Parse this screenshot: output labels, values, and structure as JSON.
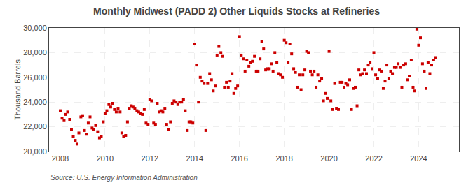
{
  "chart_data": {
    "type": "scatter",
    "title": "Monthly Midwest (PADD 2) Other Liquids Stocks at Refineries",
    "ylabel": "Thousand Barrels",
    "annotations": [
      "Source: U.S. Energy Information Administration"
    ],
    "color": "#cc0000",
    "marker": "square",
    "grid": true,
    "xlim": [
      2007.5,
      2025.8
    ],
    "xticks": [
      2008,
      2010,
      2012,
      2014,
      2016,
      2018,
      2020,
      2022,
      2024
    ],
    "ylim": [
      20000,
      30000
    ],
    "yticks": [
      {
        "value": 20000,
        "label": "20,000"
      },
      {
        "value": 22000,
        "label": "22,000"
      },
      {
        "value": 24000,
        "label": "24,000"
      },
      {
        "value": 26000,
        "label": "26,000"
      },
      {
        "value": 28000,
        "label": "28,000"
      },
      {
        "value": 30000,
        "label": "30,000"
      }
    ],
    "x": [
      2008.0,
      2008.08,
      2008.17,
      2008.25,
      2008.33,
      2008.42,
      2008.5,
      2008.58,
      2008.67,
      2008.75,
      2008.83,
      2008.92,
      2009.0,
      2009.08,
      2009.17,
      2009.25,
      2009.33,
      2009.42,
      2009.5,
      2009.58,
      2009.67,
      2009.75,
      2009.83,
      2009.92,
      2010.0,
      2010.08,
      2010.17,
      2010.25,
      2010.33,
      2010.42,
      2010.5,
      2010.58,
      2010.67,
      2010.75,
      2010.83,
      2010.92,
      2011.0,
      2011.08,
      2011.17,
      2011.25,
      2011.33,
      2011.42,
      2011.5,
      2011.58,
      2011.67,
      2011.75,
      2011.83,
      2011.92,
      2012.0,
      2012.08,
      2012.17,
      2012.25,
      2012.33,
      2012.42,
      2012.5,
      2012.58,
      2012.67,
      2012.75,
      2012.83,
      2012.92,
      2013.0,
      2013.08,
      2013.17,
      2013.25,
      2013.33,
      2013.42,
      2013.5,
      2013.58,
      2013.67,
      2013.75,
      2013.83,
      2013.92,
      2014.0,
      2014.08,
      2014.17,
      2014.25,
      2014.33,
      2014.42,
      2014.5,
      2014.58,
      2014.67,
      2014.75,
      2014.83,
      2014.92,
      2015.0,
      2015.08,
      2015.17,
      2015.25,
      2015.33,
      2015.42,
      2015.5,
      2015.58,
      2015.67,
      2015.75,
      2015.83,
      2015.92,
      2016.0,
      2016.08,
      2016.17,
      2016.25,
      2016.33,
      2016.42,
      2016.5,
      2016.58,
      2016.67,
      2016.75,
      2016.83,
      2016.92,
      2017.0,
      2017.08,
      2017.17,
      2017.25,
      2017.33,
      2017.42,
      2017.5,
      2017.58,
      2017.67,
      2017.75,
      2017.83,
      2017.92,
      2018.0,
      2018.08,
      2018.17,
      2018.25,
      2018.33,
      2018.42,
      2018.5,
      2018.58,
      2018.67,
      2018.75,
      2018.83,
      2018.92,
      2019.0,
      2019.08,
      2019.17,
      2019.25,
      2019.33,
      2019.42,
      2019.5,
      2019.58,
      2019.67,
      2019.75,
      2019.83,
      2019.92,
      2020.0,
      2020.08,
      2020.17,
      2020.25,
      2020.33,
      2020.42,
      2020.5,
      2020.58,
      2020.67,
      2020.75,
      2020.83,
      2020.92,
      2021.0,
      2021.08,
      2021.17,
      2021.25,
      2021.33,
      2021.42,
      2021.5,
      2021.58,
      2021.67,
      2021.75,
      2021.83,
      2021.92,
      2022.0,
      2022.08,
      2022.17,
      2022.25,
      2022.33,
      2022.42,
      2022.5,
      2022.58,
      2022.67,
      2022.75,
      2022.83,
      2022.92,
      2023.0,
      2023.08,
      2023.17,
      2023.25,
      2023.33,
      2023.42,
      2023.5,
      2023.58,
      2023.67,
      2023.75,
      2023.83,
      2023.92,
      2024.0,
      2024.08,
      2024.17,
      2024.25,
      2024.33,
      2024.42,
      2024.5,
      2024.58,
      2024.67,
      2024.75
    ],
    "values": [
      23300,
      22700,
      22500,
      23000,
      23200,
      22600,
      21800,
      21200,
      20900,
      20600,
      21500,
      22800,
      22900,
      21700,
      21400,
      22300,
      22800,
      21900,
      21800,
      22100,
      21600,
      21100,
      21200,
      22400,
      23100,
      23300,
      23800,
      23600,
      23900,
      23400,
      23200,
      23500,
      23200,
      21500,
      21200,
      21300,
      22400,
      23500,
      23700,
      23600,
      23500,
      23300,
      23200,
      23100,
      23000,
      23400,
      22300,
      22200,
      24200,
      24100,
      22300,
      22200,
      23900,
      23200,
      23300,
      23200,
      23500,
      22200,
      21800,
      22400,
      23900,
      24100,
      24000,
      23800,
      24000,
      24000,
      24200,
      23300,
      21700,
      22400,
      22400,
      22300,
      28700,
      27000,
      24000,
      26000,
      25700,
      25500,
      21700,
      25500,
      26300,
      25800,
      24900,
      25300,
      27800,
      28500,
      28000,
      27700,
      25200,
      25600,
      25200,
      25700,
      26300,
      24700,
      25100,
      25300,
      29300,
      27800,
      27500,
      26500,
      27400,
      26900,
      27200,
      27300,
      27700,
      26500,
      26500,
      27500,
      28900,
      28300,
      26600,
      26700,
      26700,
      27100,
      26500,
      28000,
      27200,
      26300,
      26200,
      26000,
      29000,
      28800,
      27200,
      28700,
      27900,
      26700,
      26400,
      25200,
      26200,
      25000,
      26200,
      26600,
      28100,
      28000,
      26500,
      26200,
      26500,
      25200,
      26200,
      25700,
      25900,
      24100,
      24700,
      24300,
      28100,
      24100,
      23400,
      25500,
      23500,
      23400,
      25600,
      25600,
      25200,
      25500,
      25400,
      25800,
      23400,
      25100,
      25200,
      23700,
      26600,
      26200,
      26300,
      26600,
      26300,
      27000,
      27200,
      26700,
      28000,
      26200,
      25900,
      26600,
      26500,
      25100,
      25700,
      27000,
      25900,
      26500,
      26300,
      26800,
      26800,
      27100,
      26800,
      25200,
      27000,
      27100,
      25800,
      26100,
      27400,
      25200,
      24900,
      29900,
      28600,
      29200,
      27100,
      26500,
      25100,
      27200,
      26300,
      27000,
      27400,
      27600
    ]
  }
}
